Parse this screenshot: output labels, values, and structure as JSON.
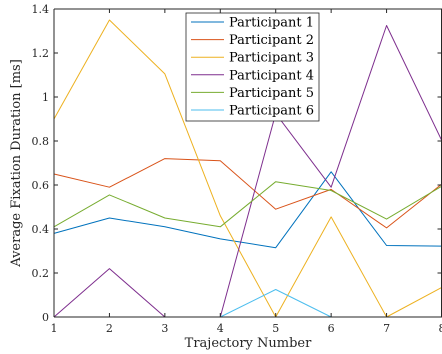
{
  "chart_data": {
    "type": "line",
    "x": [
      1,
      2,
      3,
      4,
      5,
      6,
      7,
      8
    ],
    "xlabel": "Trajectory Number",
    "ylabel": "Average Fixation Duration [ms]",
    "xlim": [
      1,
      8
    ],
    "ylim": [
      0,
      1.4
    ],
    "xticks": [
      1,
      2,
      3,
      4,
      5,
      6,
      7,
      8
    ],
    "yticks": [
      0,
      0.2,
      0.4,
      0.6,
      0.8,
      1,
      1.2,
      1.4
    ],
    "ytick_labels": [
      "0",
      "0.2",
      "0.4",
      "0.6",
      "0.8",
      "1",
      "1.2",
      "1.4"
    ],
    "grid": false,
    "legend_position": "top-center",
    "series": [
      {
        "name": "Participant 1",
        "color": "#0072BD",
        "values": [
          0.38,
          0.45,
          0.41,
          0.355,
          0.315,
          0.66,
          0.325,
          0.322
        ]
      },
      {
        "name": "Participant 2",
        "color": "#D95319",
        "values": [
          0.65,
          0.59,
          0.72,
          0.71,
          0.49,
          0.58,
          0.405,
          0.605
        ]
      },
      {
        "name": "Participant 3",
        "color": "#EDB120",
        "values": [
          0.9,
          1.35,
          1.105,
          0.46,
          0.0,
          0.455,
          0.0,
          0.135
        ]
      },
      {
        "name": "Participant 4",
        "color": "#7E2F8E",
        "values": [
          0.0,
          0.22,
          0.0,
          0.0,
          0.925,
          0.59,
          1.325,
          0.8
        ]
      },
      {
        "name": "Participant 5",
        "color": "#77AC30",
        "values": [
          0.41,
          0.555,
          0.45,
          0.41,
          0.615,
          0.575,
          0.445,
          0.595
        ]
      },
      {
        "name": "Participant 6",
        "color": "#4DBEEE",
        "values": [
          0.0,
          0.0,
          0.0,
          0.0,
          0.125,
          0.0,
          0.0,
          0.0
        ]
      }
    ]
  }
}
